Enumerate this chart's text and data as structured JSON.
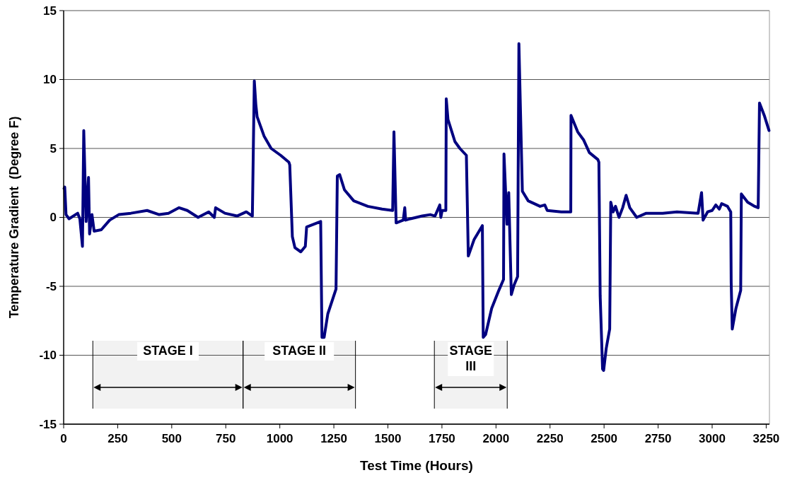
{
  "chart_data": {
    "type": "line",
    "xlabel": "Test Time (Hours)",
    "ylabel": "Temperature Gradient  (Degree F)",
    "xlim": [
      0,
      3265
    ],
    "ylim": [
      -15,
      15
    ],
    "xticks": [
      0,
      250,
      500,
      750,
      1000,
      1250,
      1500,
      1750,
      2000,
      2250,
      2500,
      2750,
      3000,
      3250
    ],
    "yticks": [
      -15,
      -10,
      -5,
      0,
      5,
      10,
      15
    ],
    "grid": "y",
    "marker": "none",
    "line_style": "solid",
    "bands": [
      {
        "axis": "x",
        "from": 135,
        "to": 830,
        "label": "STAGE I",
        "color": "#000000"
      },
      {
        "axis": "x",
        "from": 830,
        "to": 1350,
        "label": "STAGE II",
        "color": "#000000"
      },
      {
        "axis": "x",
        "from": 1715,
        "to": 2052,
        "label": "STAGE III",
        "color": "#000000"
      }
    ],
    "series": [
      {
        "color": "#000080",
        "x": [
          2,
          5,
          11,
          25,
          65,
          75,
          87,
          93,
          104,
          115,
          120,
          131,
          141,
          174,
          213,
          255,
          311,
          386,
          442,
          485,
          534,
          572,
          622,
          671,
          697,
          703,
          746,
          802,
          845,
          873,
          882,
          889,
          895,
          927,
          960,
          1004,
          1042,
          1046,
          1058,
          1070,
          1097,
          1118,
          1124,
          1189,
          1195,
          1205,
          1222,
          1260,
          1266,
          1277,
          1299,
          1342,
          1407,
          1473,
          1522,
          1528,
          1538,
          1571,
          1578,
          1582,
          1604,
          1659,
          1696,
          1718,
          1740,
          1745,
          1751,
          1768,
          1770,
          1778,
          1810,
          1833,
          1863,
          1872,
          1899,
          1937,
          1941,
          1952,
          1980,
          2013,
          2035,
          2037,
          2051,
          2059,
          2071,
          2084,
          2100,
          2106,
          2122,
          2149,
          2204,
          2226,
          2237,
          2302,
          2346,
          2347,
          2378,
          2406,
          2432,
          2471,
          2476,
          2482,
          2493,
          2498,
          2510,
          2526,
          2531,
          2542,
          2553,
          2569,
          2586,
          2602,
          2619,
          2651,
          2695,
          2771,
          2837,
          2935,
          2951,
          2958,
          2979,
          3000,
          3017,
          3033,
          3044,
          3071,
          3086,
          3088,
          3093,
          3110,
          3132,
          3135,
          3164,
          3197,
          3213,
          3219,
          3241,
          3263
        ],
        "values": [
          2.1,
          2.2,
          0.2,
          -0.1,
          0.3,
          -0.1,
          -2.1,
          6.3,
          -0.3,
          2.9,
          -1.2,
          0.2,
          -1.0,
          -0.9,
          -0.2,
          0.2,
          0.3,
          0.5,
          0.2,
          0.3,
          0.7,
          0.5,
          0.0,
          0.4,
          0.0,
          0.7,
          0.3,
          0.1,
          0.4,
          0.1,
          9.9,
          8.2,
          7.3,
          5.9,
          5.0,
          4.5,
          4.0,
          3.8,
          -1.4,
          -2.2,
          -2.5,
          -2.1,
          -0.7,
          -0.3,
          -8.7,
          -8.7,
          -7.0,
          -5.2,
          3.0,
          3.1,
          2.0,
          1.2,
          0.8,
          0.6,
          0.5,
          6.2,
          -0.4,
          -0.2,
          0.7,
          -0.2,
          -0.1,
          0.1,
          0.2,
          0.1,
          0.9,
          0.0,
          0.5,
          0.5,
          8.6,
          7.1,
          5.5,
          5.0,
          4.5,
          -2.8,
          -1.6,
          -0.6,
          -8.7,
          -8.5,
          -6.6,
          -5.3,
          -4.5,
          4.6,
          -0.5,
          1.8,
          -5.6,
          -4.9,
          -4.3,
          12.6,
          1.9,
          1.2,
          0.8,
          0.9,
          0.5,
          0.4,
          0.4,
          7.4,
          6.2,
          5.6,
          4.7,
          4.2,
          4.0,
          -5.7,
          -11.0,
          -11.1,
          -9.5,
          -8.1,
          1.1,
          0.4,
          0.8,
          0.0,
          0.7,
          1.6,
          0.7,
          0.0,
          0.3,
          0.3,
          0.4,
          0.3,
          1.8,
          -0.2,
          0.4,
          0.5,
          0.9,
          0.6,
          1.0,
          0.8,
          0.4,
          -4.7,
          -8.1,
          -6.6,
          -5.3,
          1.7,
          1.1,
          0.8,
          0.7,
          8.3,
          7.4,
          6.3
        ]
      }
    ]
  }
}
